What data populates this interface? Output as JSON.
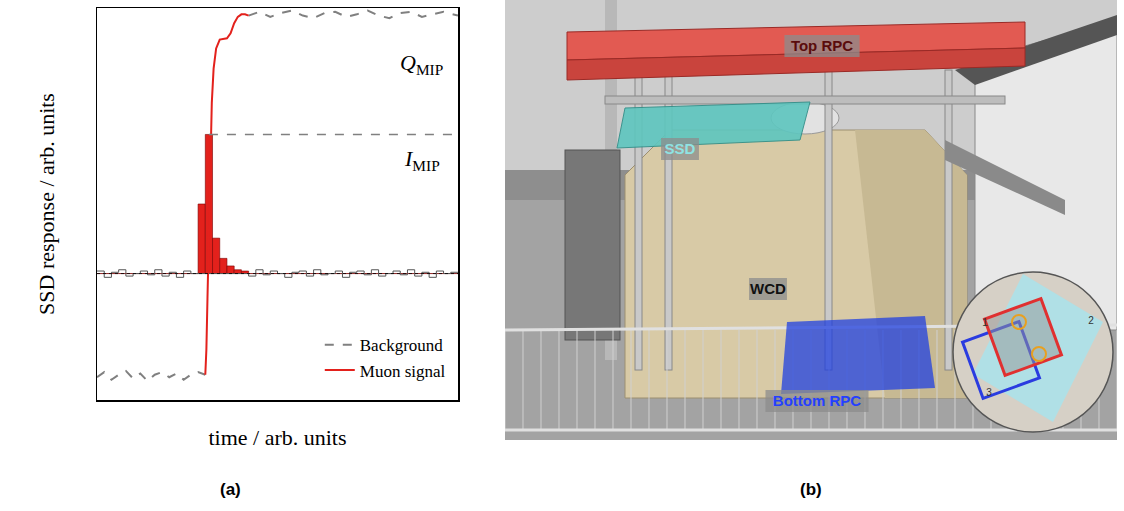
{
  "chart_data": {
    "type": "line",
    "panel": "(a)",
    "xlabel": "time / arb. units",
    "ylabel": "SSD response / arb. units",
    "xlim": [
      0,
      100
    ],
    "ylim": [
      -1,
      2.1
    ],
    "tick_labels": false,
    "grid": false,
    "legend": "lower right",
    "series": [
      {
        "name": "Background",
        "color": "#808080",
        "line_style": "dashed",
        "x": [
          0,
          2,
          4,
          6,
          8,
          10,
          12,
          14,
          16,
          18,
          20,
          22,
          24,
          26,
          28,
          30,
          36,
          42,
          45,
          48,
          51,
          54,
          57,
          60,
          63,
          66,
          69,
          72,
          75,
          78,
          81,
          84,
          87,
          90,
          93,
          96,
          100
        ],
        "values": [
          -0.82,
          -0.78,
          -0.84,
          -0.8,
          -0.77,
          -0.83,
          -0.79,
          -0.85,
          -0.8,
          -0.78,
          -0.82,
          -0.79,
          -0.84,
          -0.8,
          -0.78,
          -0.8,
          null,
          2.04,
          2.07,
          2.03,
          2.06,
          2.08,
          2.04,
          2.02,
          2.06,
          2.07,
          2.03,
          2.05,
          2.08,
          2.04,
          2.02,
          2.06,
          2.07,
          2.03,
          2.05,
          2.07,
          2.04
        ]
      },
      {
        "name": "Muon signal",
        "color": "#e3211c",
        "line_style": "solid",
        "x": [
          30,
          30.3,
          30.6,
          31,
          31.4,
          31.8,
          32.3,
          33,
          34,
          36,
          37,
          38,
          39,
          40,
          41,
          42
        ],
        "values": [
          -0.8,
          -0.6,
          -0.2,
          0.3,
          0.9,
          1.35,
          1.62,
          1.78,
          1.85,
          1.86,
          1.9,
          1.98,
          2.03,
          2.05,
          2.05,
          2.04
        ]
      }
    ],
    "histogram": {
      "bins": [
        0,
        2,
        4,
        6,
        8,
        10,
        12,
        14,
        16,
        18,
        20,
        22,
        24,
        26,
        28,
        30,
        32,
        34,
        36,
        38,
        40,
        42,
        44,
        46,
        48,
        50,
        52,
        54,
        56,
        58,
        60,
        62,
        64,
        66,
        68,
        70,
        72,
        74,
        76,
        78,
        80,
        82,
        84,
        86,
        88,
        90,
        92,
        94,
        96,
        98,
        100
      ],
      "background": {
        "color": "#555555",
        "values": [
          0.02,
          -0.03,
          0.01,
          0.03,
          -0.02,
          0,
          0.02,
          -0.01,
          0.03,
          -0.02,
          0.01,
          -0.03,
          0.02,
          0,
          0,
          0,
          0,
          0,
          0,
          0,
          0,
          -0.02,
          0.03,
          -0.01,
          0.02,
          0,
          -0.03,
          0.01,
          0.02,
          -0.02,
          0.03,
          -0.01,
          0,
          0.02,
          -0.03,
          0.01,
          0.02,
          -0.01,
          0.03,
          -0.02,
          0,
          0.02,
          -0.01,
          0.03,
          -0.02,
          0.01,
          -0.03,
          0.02,
          0,
          0.01
        ]
      },
      "muon_signal": {
        "color": "#e3211c",
        "values": [
          0,
          0,
          0,
          0,
          0,
          0,
          0,
          0,
          0,
          0,
          0,
          0,
          0,
          0,
          0.55,
          1.1,
          0.28,
          0.12,
          0.06,
          0.03,
          0.02,
          0,
          0,
          0,
          0,
          0,
          0,
          0,
          0,
          0,
          0,
          0,
          0,
          0,
          0,
          0,
          0,
          0,
          0,
          0,
          0,
          0,
          0,
          0,
          0,
          0,
          0,
          0,
          0,
          0
        ]
      }
    },
    "levels": [
      {
        "symbol": "Q",
        "subscript": "MIP",
        "value": 2.05,
        "x_from": 42,
        "line_style": "none"
      },
      {
        "symbol": "I",
        "subscript": "MIP",
        "value": 1.1,
        "x_from": 31,
        "line_style": "dashed",
        "color": "#808080"
      }
    ],
    "baseline": {
      "value": 0,
      "line_style": "dotted"
    }
  },
  "photo": {
    "panel": "(b)",
    "labels": [
      {
        "text": "Top RPC",
        "color": "#5a0c0c"
      },
      {
        "text": "SSD",
        "color": "#8fe3e3"
      },
      {
        "text": "WCD",
        "color": "#111111"
      },
      {
        "text": "Bottom RPC",
        "color": "#2440ff"
      }
    ],
    "inset_labels": [
      "1",
      "2",
      "3"
    ]
  }
}
